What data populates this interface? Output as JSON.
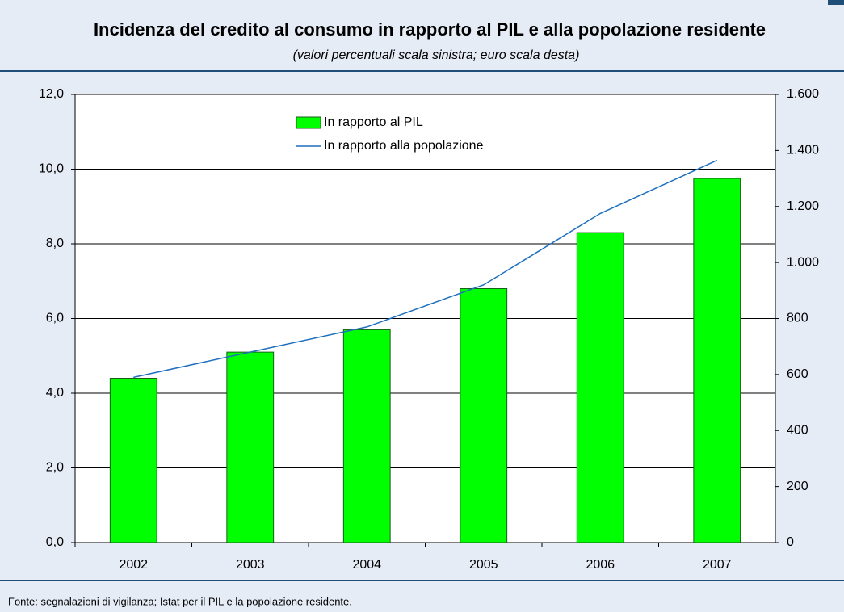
{
  "chart_data": {
    "type": "bar",
    "title": "Incidenza del credito al consumo in rapporto al PIL e alla popolazione residente",
    "subtitle": "(valori percentuali scala sinistra; euro scala desta)",
    "source": "Fonte: segnalazioni di vigilanza; Istat per il PIL e la popolazione residente.",
    "categories": [
      "2002",
      "2003",
      "2004",
      "2005",
      "2006",
      "2007"
    ],
    "series": [
      {
        "name": "In rapporto al PIL",
        "type": "bar",
        "color": "#00ff00",
        "values": [
          4.4,
          5.1,
          5.7,
          6.8,
          8.3,
          9.75
        ]
      },
      {
        "name": "In rapporto alla popolazione",
        "type": "line",
        "axis": "y2",
        "color": "#1f6fbf",
        "values": [
          590,
          680,
          770,
          920,
          1175,
          1365
        ]
      }
    ],
    "ylim": [
      0,
      12
    ],
    "yticks": [
      {
        "value": 0,
        "label": "0,0"
      },
      {
        "value": 2,
        "label": "2,0"
      },
      {
        "value": 4,
        "label": "4,0"
      },
      {
        "value": 6,
        "label": "6,0"
      },
      {
        "value": 8,
        "label": "8,0"
      },
      {
        "value": 10,
        "label": "10,0"
      },
      {
        "value": 12,
        "label": "12,0"
      }
    ],
    "y2lim": [
      0,
      1600
    ],
    "y2ticks": [
      0,
      200,
      400,
      600,
      800,
      {
        "value": 1000,
        "label": "1.000"
      },
      {
        "value": 1200,
        "label": "1.200"
      },
      {
        "value": 1400,
        "label": "1.400"
      },
      {
        "value": 1600,
        "label": "1.600"
      }
    ],
    "grid": true
  }
}
